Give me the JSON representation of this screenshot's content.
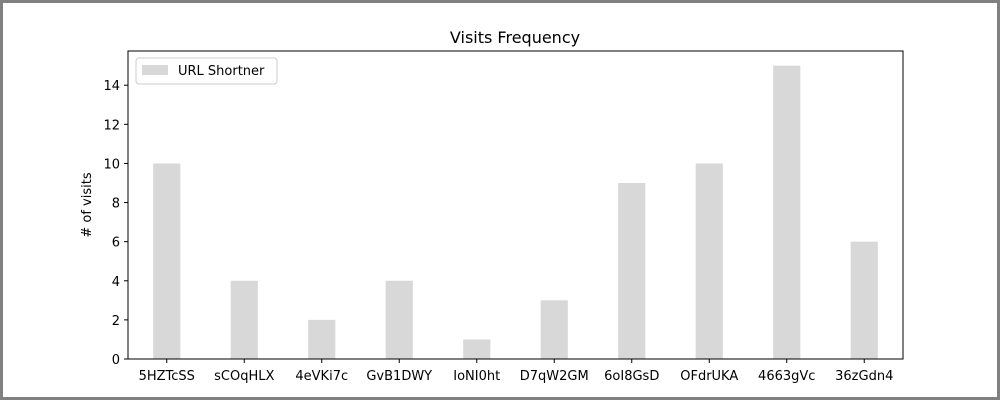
{
  "chart_data": {
    "type": "bar",
    "title": "Visits Frequency",
    "xlabel": "",
    "ylabel": "# of visits",
    "categories": [
      "5HZTcSS",
      "sCOqHLX",
      "4eVKi7c",
      "GvB1DWY",
      "IoNI0ht",
      "D7qW2GM",
      "6oI8GsD",
      "OFdrUKA",
      "4663gVc",
      "36zGdn4"
    ],
    "series": [
      {
        "name": "URL Shortner",
        "values": [
          10,
          4,
          2,
          4,
          1,
          3,
          9,
          10,
          15,
          6
        ],
        "color": "#d8d8d8"
      }
    ],
    "ylim": [
      0,
      15.75
    ],
    "yticks": [
      0,
      2,
      4,
      6,
      8,
      10,
      12,
      14
    ],
    "legend_position": "top-left",
    "grid": false
  }
}
